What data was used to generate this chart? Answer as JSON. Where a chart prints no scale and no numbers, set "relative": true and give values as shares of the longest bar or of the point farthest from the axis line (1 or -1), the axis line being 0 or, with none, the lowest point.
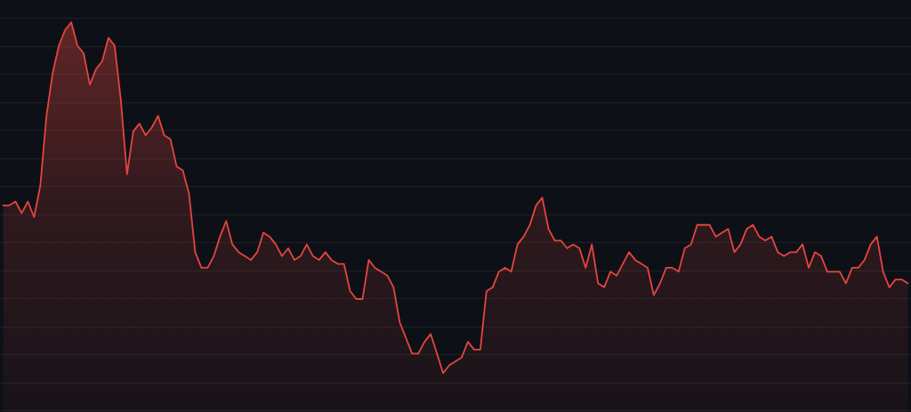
{
  "chart_data": {
    "type": "area",
    "relative": true,
    "grid": "y",
    "marker": "none",
    "color": "#e5453f",
    "categories": [
      null,
      null,
      null,
      null,
      null,
      null,
      null,
      null,
      null,
      null,
      null,
      null,
      null,
      null,
      null,
      null,
      null,
      null,
      null,
      null,
      null,
      null,
      null,
      null,
      null,
      null,
      null,
      null,
      null,
      null,
      null,
      null,
      null,
      null,
      null,
      null,
      null,
      null,
      null,
      null,
      null,
      null,
      null,
      null,
      null,
      null,
      null,
      null,
      null,
      null,
      null,
      null,
      null,
      null,
      null,
      null,
      null,
      null,
      null,
      null,
      null,
      null,
      null,
      null,
      null,
      null,
      null,
      null,
      null,
      null,
      null,
      null,
      null,
      null,
      null,
      null,
      null,
      null,
      null,
      null,
      null,
      null,
      null,
      null,
      null,
      null,
      null,
      null,
      null,
      null,
      null,
      null,
      null,
      null,
      null,
      null,
      null,
      null,
      null,
      null,
      null,
      null,
      null,
      null,
      null,
      null,
      null,
      null,
      null,
      null,
      null,
      null,
      null,
      null,
      null,
      null,
      null,
      null,
      null,
      null,
      null,
      null,
      null,
      null,
      null,
      null,
      null,
      null,
      null,
      null,
      null,
      null,
      null,
      null,
      null,
      null,
      null,
      null,
      null,
      null,
      null,
      null,
      null,
      null,
      null,
      null,
      null
    ],
    "values": [
      0.53,
      0.53,
      0.54,
      0.51,
      0.54,
      0.5,
      0.58,
      0.76,
      0.87,
      0.94,
      0.98,
      1,
      0.94,
      0.92,
      0.84,
      0.88,
      0.9,
      0.96,
      0.94,
      0.8,
      0.61,
      0.72,
      0.74,
      0.71,
      0.73,
      0.76,
      0.71,
      0.7,
      0.63,
      0.62,
      0.56,
      0.41,
      0.37,
      0.37,
      0.4,
      0.45,
      0.49,
      0.43,
      0.41,
      0.4,
      0.39,
      0.41,
      0.46,
      0.45,
      0.43,
      0.4,
      0.42,
      0.39,
      0.4,
      0.43,
      0.4,
      0.39,
      0.41,
      0.39,
      0.38,
      0.38,
      0.31,
      0.29,
      0.29,
      0.39,
      0.37,
      0.36,
      0.35,
      0.32,
      0.23,
      0.19,
      0.15,
      0.15,
      0.18,
      0.2,
      0.15,
      0.1,
      0.12,
      0.13,
      0.14,
      0.18,
      0.16,
      0.16,
      0.31,
      0.32,
      0.36,
      0.37,
      0.36,
      0.43,
      0.45,
      0.48,
      0.53,
      0.55,
      0.47,
      0.44,
      0.44,
      0.42,
      0.43,
      0.42,
      0.37,
      0.43,
      0.33,
      0.32,
      0.36,
      0.35,
      0.38,
      0.41,
      0.39,
      0.38,
      0.37,
      0.3,
      0.33,
      0.37,
      0.37,
      0.36,
      0.42,
      0.43,
      0.48,
      0.48,
      0.48,
      0.45,
      0.46,
      0.47,
      0.41,
      0.43,
      0.47,
      0.48,
      0.45,
      0.44,
      0.45,
      0.41,
      0.4,
      0.41,
      0.41,
      0.43,
      0.37,
      0.41,
      0.4,
      0.36,
      0.36,
      0.36,
      0.33,
      0.37,
      0.37,
      0.39,
      0.43,
      0.45,
      0.36,
      0.32,
      0.34,
      0.34,
      0.33
    ]
  }
}
